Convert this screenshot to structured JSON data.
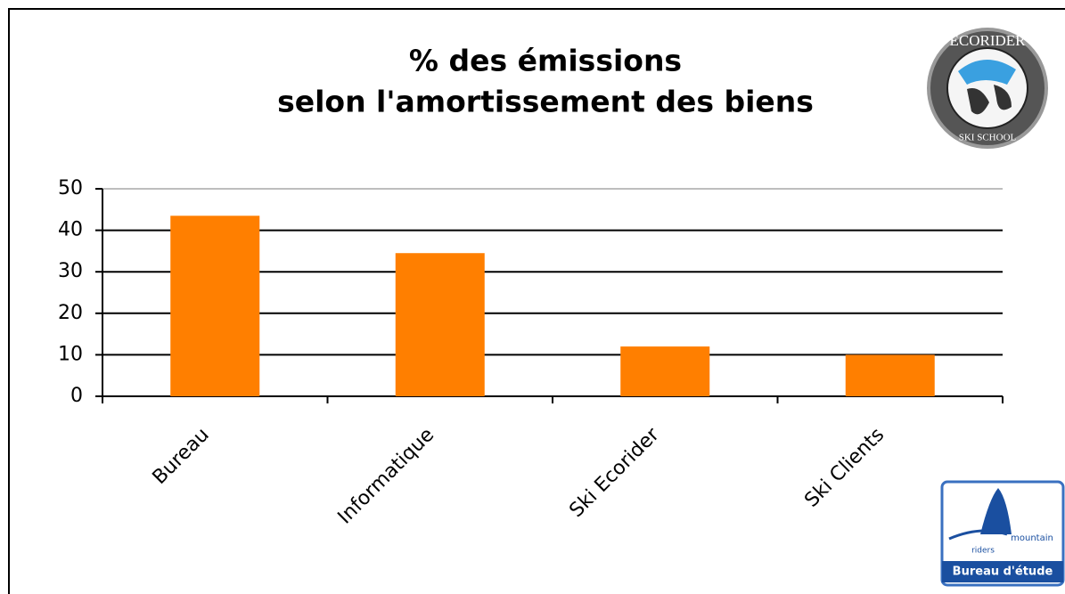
{
  "chart_data": {
    "type": "bar",
    "title": [
      "% des émissions",
      "selon l'amortissement des biens"
    ],
    "categories": [
      "Bureau",
      "Informatique",
      "Ski Ecorider",
      "Ski Clients"
    ],
    "values": [
      43.5,
      34.5,
      12,
      10
    ],
    "color": "#ff7f00",
    "ylim": [
      0,
      50
    ],
    "yticks": [
      0,
      10,
      20,
      30,
      40,
      50
    ],
    "grid": true
  },
  "logos": {
    "ecorider": [
      "ECORIDER",
      "SKI SCHOOL"
    ],
    "mountain_riders": [
      "mountain",
      "riders",
      "Bureau d'étude"
    ]
  }
}
